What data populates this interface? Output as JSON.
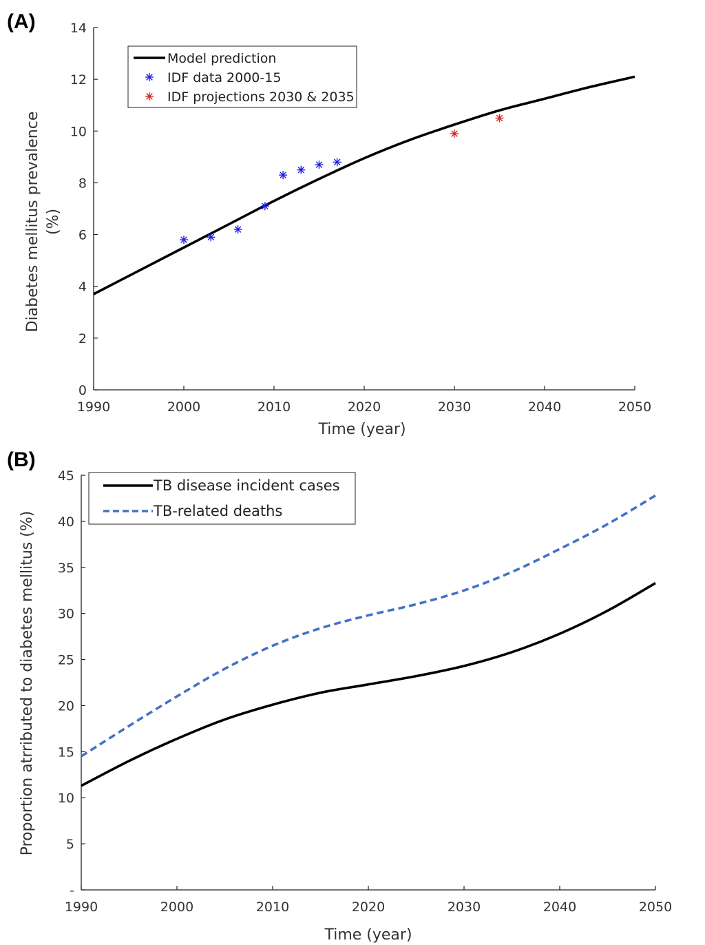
{
  "chart_data": [
    {
      "type": "line",
      "panel_label": "(A)",
      "xlabel": "Time (year)",
      "ylabel": "Diabetes mellitus prevalence (%)",
      "xlim": [
        1990,
        2050
      ],
      "ylim": [
        0,
        14
      ],
      "xticks": [
        "1990",
        "2000",
        "2010",
        "2020",
        "2030",
        "2040",
        "2050"
      ],
      "yticks": [
        "0",
        "2",
        "4",
        "6",
        "8",
        "10",
        "12",
        "14"
      ],
      "grid": false,
      "legend_position": "top-left",
      "series": [
        {
          "name": "Model prediction",
          "style": "solid-line",
          "color": "#000000",
          "x": [
            1990,
            1995,
            2000,
            2005,
            2010,
            2015,
            2020,
            2025,
            2030,
            2035,
            2040,
            2045,
            2050
          ],
          "y": [
            3.7,
            4.6,
            5.5,
            6.4,
            7.3,
            8.15,
            8.95,
            9.65,
            10.25,
            10.8,
            11.25,
            11.7,
            12.1
          ]
        },
        {
          "name": "IDF data 2000-15",
          "style": "asterisk-markers",
          "color": "#1f1fe6",
          "x": [
            2000,
            2003,
            2006,
            2009,
            2011,
            2013,
            2015,
            2017
          ],
          "y": [
            5.8,
            5.9,
            6.2,
            7.1,
            8.3,
            8.5,
            8.7,
            8.8
          ]
        },
        {
          "name": "IDF projections 2030 & 2035",
          "style": "asterisk-markers",
          "color": "#e61f1f",
          "x": [
            2030,
            2035
          ],
          "y": [
            9.9,
            10.5
          ]
        }
      ]
    },
    {
      "type": "line",
      "panel_label": "(B)",
      "xlabel": "Time (year)",
      "ylabel": "Proportion atrributed to diabetes mellitus (%)",
      "xlim": [
        1990,
        2050
      ],
      "ylim": [
        0,
        45
      ],
      "xticks": [
        "1990",
        "2000",
        "2010",
        "2020",
        "2030",
        "2040",
        "2050"
      ],
      "yticks": [
        "-",
        "5",
        "10",
        "15",
        "20",
        "25",
        "30",
        "35",
        "40",
        "45"
      ],
      "grid": false,
      "legend_position": "top-left",
      "series": [
        {
          "name": "TB disease incident cases",
          "style": "solid-line",
          "color": "#000000",
          "x": [
            1990,
            1995,
            2000,
            2005,
            2010,
            2015,
            2020,
            2025,
            2030,
            2035,
            2040,
            2045,
            2050
          ],
          "y": [
            11.3,
            14.0,
            16.4,
            18.5,
            20.1,
            21.4,
            22.3,
            23.2,
            24.3,
            25.8,
            27.8,
            30.3,
            33.3
          ]
        },
        {
          "name": "TB-related deaths",
          "style": "dashed-line",
          "color": "#4472c4",
          "x": [
            1990,
            1995,
            2000,
            2005,
            2010,
            2015,
            2020,
            2025,
            2030,
            2035,
            2040,
            2045,
            2050
          ],
          "y": [
            14.5,
            17.8,
            21.0,
            24.0,
            26.5,
            28.4,
            29.8,
            31.0,
            32.5,
            34.5,
            37.0,
            39.7,
            42.8
          ]
        }
      ]
    }
  ]
}
